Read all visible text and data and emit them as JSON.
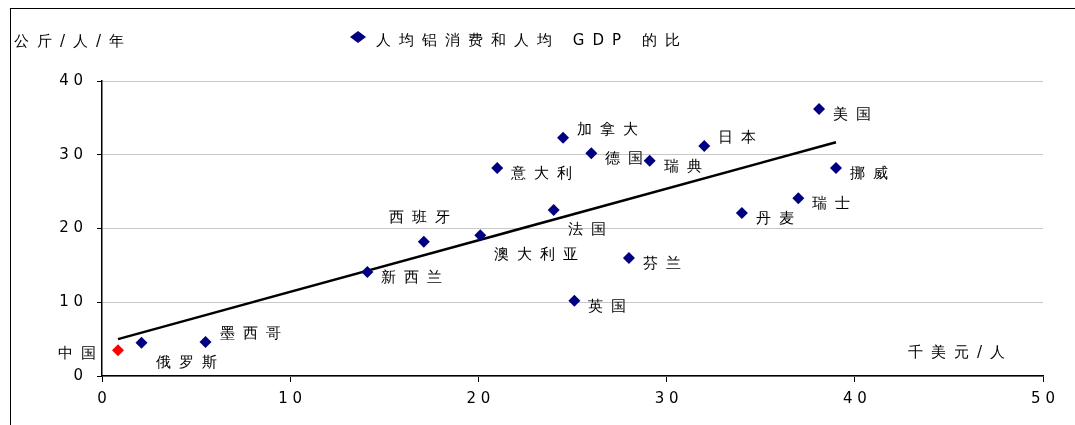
{
  "chart_data": {
    "type": "scatter",
    "xlabel": "千美元/人",
    "ylabel": "公斤/人/年",
    "xlim": [
      0,
      50
    ],
    "xticks": [
      0,
      10,
      20,
      30,
      40,
      50
    ],
    "ylim": [
      0,
      40
    ],
    "yticks": [
      0,
      10,
      20,
      30,
      40
    ],
    "grid": "y",
    "legend": "top",
    "marker": "diamond",
    "series": [
      {
        "name": "人均铝消费和人均 GDP 的比",
        "color": "#000080",
        "x": [
          0.85,
          2.1,
          5.5,
          14.1,
          17.1,
          20.1,
          21.0,
          24.0,
          24.5,
          26.0,
          25.1,
          28.0,
          29.1,
          32.0,
          34.0,
          37.0,
          38.1,
          39.0
        ],
        "values": [
          3.5,
          4.5,
          4.6,
          14.1,
          18.2,
          19.1,
          28.2,
          22.5,
          32.3,
          30.2,
          10.2,
          16.0,
          29.2,
          31.2,
          22.1,
          24.1,
          36.2,
          28.2
        ],
        "colors": [
          "#ff0000",
          "#000080",
          "#000080",
          "#000080",
          "#000080",
          "#000080",
          "#000080",
          "#000080",
          "#000080",
          "#000080",
          "#000080",
          "#000080",
          "#000080",
          "#000080",
          "#000080",
          "#000080",
          "#000080",
          "#000080"
        ]
      },
      {
        "type": "line",
        "marker": "none",
        "color": "#000000",
        "x": [
          0.85,
          39.0
        ],
        "values": [
          5.0,
          31.7
        ]
      }
    ],
    "annotations": [
      {
        "text": "中国",
        "x": 0.85,
        "y": 3.5
      },
      {
        "text": "俄罗斯",
        "x": 2.1,
        "y": 4.5
      },
      {
        "text": "墨西哥",
        "x": 5.5,
        "y": 4.6
      },
      {
        "text": "新西兰",
        "x": 14.1,
        "y": 14.1
      },
      {
        "text": "西班牙",
        "x": 17.1,
        "y": 18.2
      },
      {
        "text": "澳大利亚",
        "x": 20.1,
        "y": 19.1
      },
      {
        "text": "意大利",
        "x": 21.0,
        "y": 28.2
      },
      {
        "text": "法国",
        "x": 24.0,
        "y": 22.5
      },
      {
        "text": "加拿大",
        "x": 24.5,
        "y": 32.3
      },
      {
        "text": "德国",
        "x": 26.0,
        "y": 30.2
      },
      {
        "text": "英国",
        "x": 25.1,
        "y": 10.2
      },
      {
        "text": "芬兰",
        "x": 28.0,
        "y": 16.0
      },
      {
        "text": "瑞典",
        "x": 29.1,
        "y": 29.2
      },
      {
        "text": "日本",
        "x": 32.0,
        "y": 31.2
      },
      {
        "text": "丹麦",
        "x": 34.0,
        "y": 22.1
      },
      {
        "text": "瑞士",
        "x": 37.0,
        "y": 24.1
      },
      {
        "text": "美国",
        "x": 38.1,
        "y": 36.2
      },
      {
        "text": "挪威",
        "x": 39.0,
        "y": 28.2
      }
    ]
  }
}
